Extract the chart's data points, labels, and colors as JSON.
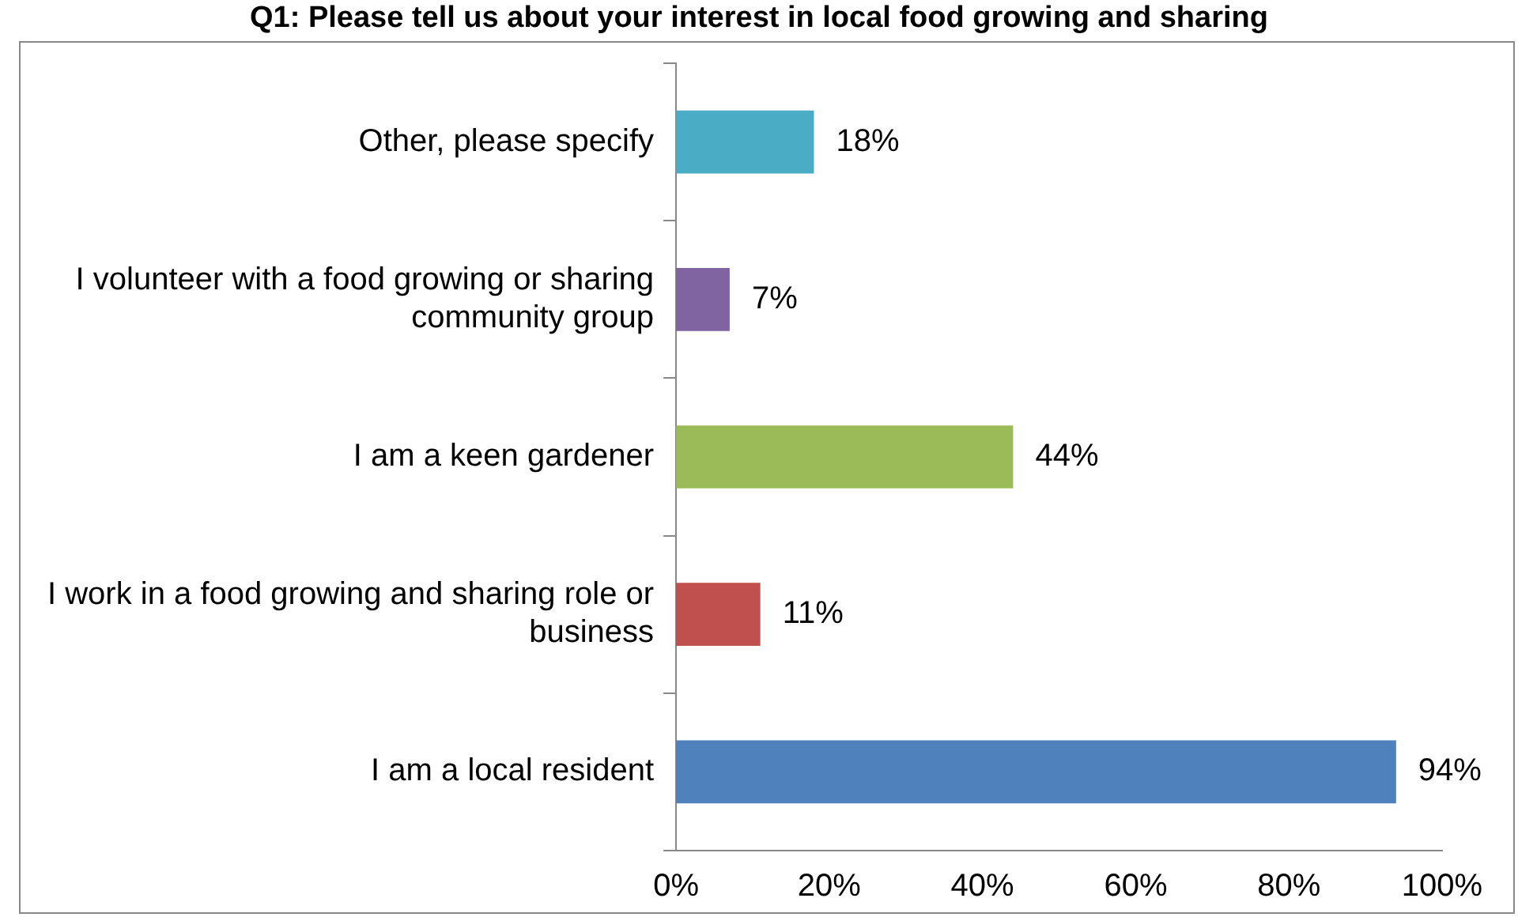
{
  "chart_data": {
    "type": "bar",
    "orientation": "horizontal",
    "title": "Q1: Please tell us about your interest in local food growing and sharing",
    "categories": [
      "Other, please specify",
      "I volunteer with a food growing or sharing community group",
      "I am a keen gardener",
      "I work in a food growing and sharing role or business",
      "I am a local resident"
    ],
    "values": [
      18,
      7,
      44,
      11,
      94
    ],
    "colors": [
      "#4bacc6",
      "#8064a2",
      "#9bbb59",
      "#c0504d",
      "#4f81bd"
    ],
    "value_labels": [
      "18%",
      "7%",
      "44%",
      "11%",
      "94%"
    ],
    "xlim": [
      0,
      100
    ],
    "xticks": [
      {
        "value": 0,
        "label": "0%"
      },
      {
        "value": 20,
        "label": "20%"
      },
      {
        "value": 40,
        "label": "40%"
      },
      {
        "value": 60,
        "label": "60%"
      },
      {
        "value": 80,
        "label": "80%"
      },
      {
        "value": 100,
        "label": "100%"
      }
    ],
    "grid": false,
    "legend": false
  }
}
